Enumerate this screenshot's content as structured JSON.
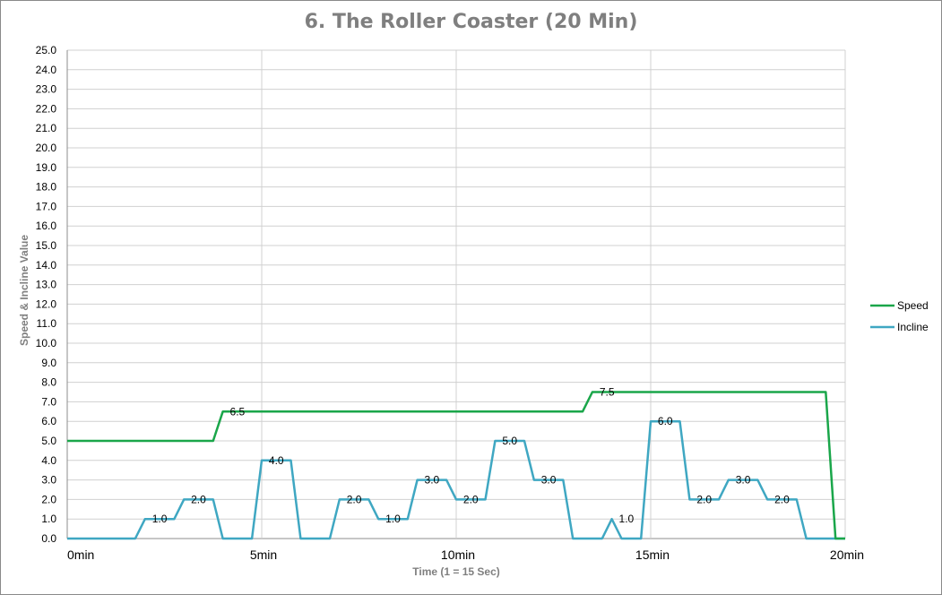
{
  "chart_data": {
    "type": "line",
    "title": "6. The Roller Coaster (20 Min)",
    "xlabel": "Time  (1 = 15 Sec)",
    "ylabel": "Speed  &  Incline Value",
    "ylim": [
      0,
      25
    ],
    "yticks": [
      "0.0",
      "1.0",
      "2.0",
      "3.0",
      "4.0",
      "5.0",
      "6.0",
      "7.0",
      "8.0",
      "9.0",
      "10.0",
      "11.0",
      "12.0",
      "13.0",
      "14.0",
      "15.0",
      "16.0",
      "17.0",
      "18.0",
      "19.0",
      "20.0",
      "21.0",
      "22.0",
      "23.0",
      "24.0",
      "25.0"
    ],
    "xticks": [
      {
        "label": "0min",
        "t": 0
      },
      {
        "label": "5min",
        "t": 20
      },
      {
        "label": "10min",
        "t": 40
      },
      {
        "label": "15min",
        "t": 60
      },
      {
        "label": "20min",
        "t": 80
      }
    ],
    "xlim": [
      0,
      80
    ],
    "grid": true,
    "legend_position": "right",
    "series": [
      {
        "name": "Speed",
        "color": "#1aa64a",
        "points": [
          [
            0,
            5
          ],
          [
            15,
            5
          ],
          [
            16,
            6.5
          ],
          [
            53,
            6.5
          ],
          [
            54,
            7.5
          ],
          [
            78,
            7.5
          ],
          [
            79,
            0
          ],
          [
            80,
            0
          ]
        ],
        "labels": [
          {
            "text": "6.5",
            "t": 17.5,
            "v": 6.5
          },
          {
            "text": "7.5",
            "t": 55.5,
            "v": 7.5
          }
        ]
      },
      {
        "name": "Incline",
        "color": "#3fa7c2",
        "points": [
          [
            0,
            0
          ],
          [
            7,
            0
          ],
          [
            8,
            1
          ],
          [
            11,
            1
          ],
          [
            12,
            2
          ],
          [
            15,
            2
          ],
          [
            16,
            0
          ],
          [
            19,
            0
          ],
          [
            20,
            4
          ],
          [
            23,
            4
          ],
          [
            24,
            0
          ],
          [
            27,
            0
          ],
          [
            28,
            2
          ],
          [
            31,
            2
          ],
          [
            32,
            1
          ],
          [
            35,
            1
          ],
          [
            36,
            3
          ],
          [
            39,
            3
          ],
          [
            40,
            2
          ],
          [
            43,
            2
          ],
          [
            44,
            5
          ],
          [
            47,
            5
          ],
          [
            48,
            3
          ],
          [
            51,
            3
          ],
          [
            52,
            0
          ],
          [
            55,
            0
          ],
          [
            56,
            1
          ],
          [
            57,
            0
          ],
          [
            59,
            0
          ],
          [
            60,
            6
          ],
          [
            63,
            6
          ],
          [
            64,
            2
          ],
          [
            67,
            2
          ],
          [
            68,
            3
          ],
          [
            71,
            3
          ],
          [
            72,
            2
          ],
          [
            75,
            2
          ],
          [
            76,
            0
          ],
          [
            79,
            0
          ],
          [
            80,
            0
          ]
        ],
        "labels": [
          {
            "text": "1.0",
            "t": 9.5,
            "v": 1
          },
          {
            "text": "2.0",
            "t": 13.5,
            "v": 2
          },
          {
            "text": "4.0",
            "t": 21.5,
            "v": 4
          },
          {
            "text": "2.0",
            "t": 29.5,
            "v": 2
          },
          {
            "text": "1.0",
            "t": 33.5,
            "v": 1
          },
          {
            "text": "3.0",
            "t": 37.5,
            "v": 3
          },
          {
            "text": "2.0",
            "t": 41.5,
            "v": 2
          },
          {
            "text": "5.0",
            "t": 45.5,
            "v": 5
          },
          {
            "text": "3.0",
            "t": 49.5,
            "v": 3
          },
          {
            "text": "1.0",
            "t": 57.5,
            "v": 1
          },
          {
            "text": "6.0",
            "t": 61.5,
            "v": 6
          },
          {
            "text": "2.0",
            "t": 65.5,
            "v": 2
          },
          {
            "text": "3.0",
            "t": 69.5,
            "v": 3
          },
          {
            "text": "2.0",
            "t": 73.5,
            "v": 2
          }
        ]
      }
    ]
  }
}
